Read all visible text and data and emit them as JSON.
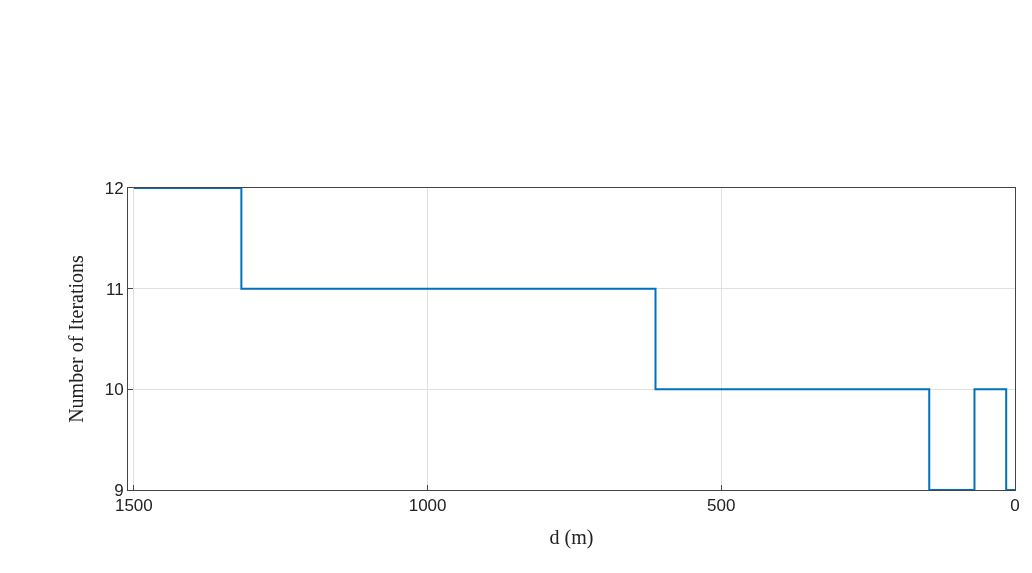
{
  "chart_data": {
    "type": "step",
    "xlabel": "d (m)",
    "ylabel": "Number of Iterations",
    "x": [
      1500,
      1317,
      612,
      146,
      69,
      15,
      0
    ],
    "series": [
      {
        "color": "#0072bd",
        "values": [
          12,
          11,
          10,
          9,
          10,
          9,
          9
        ]
      }
    ],
    "xlim": [
      1510,
      0
    ],
    "xticks": [
      1500,
      1000,
      500,
      0
    ],
    "ylim": [
      9,
      12
    ],
    "yticks": [
      9,
      10,
      11,
      12
    ],
    "grid": true
  }
}
